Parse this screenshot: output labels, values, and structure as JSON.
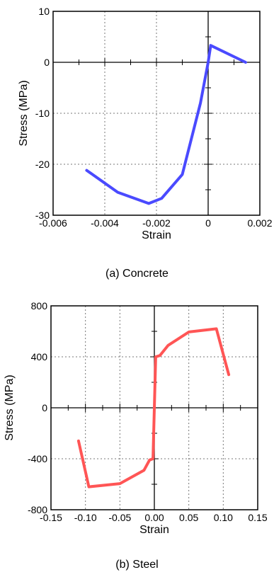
{
  "chart_data": [
    {
      "type": "line",
      "caption": "(a)  Concrete",
      "xlabel": "Strain",
      "ylabel": "Stress (MPa)",
      "xlim": [
        -0.006,
        0.002
      ],
      "ylim": [
        -30,
        10
      ],
      "x_ticks": [
        -0.006,
        -0.004,
        -0.002,
        0,
        0.002
      ],
      "x_tick_labels": [
        "-0.006",
        "-0.004",
        "-0.002",
        "0",
        "0.002"
      ],
      "y_ticks": [
        -30,
        -20,
        -10,
        0,
        10
      ],
      "y_tick_labels": [
        "-30",
        "-20",
        "-10",
        "0",
        "10"
      ],
      "grid": true,
      "series": [
        {
          "color": "#4a4aff",
          "x": [
            -0.0047,
            -0.0035,
            -0.0023,
            -0.0018,
            -0.001,
            -0.0003,
            0.0,
            0.0001,
            0.00145
          ],
          "y": [
            -21.2,
            -25.5,
            -27.7,
            -26.7,
            -22.0,
            -8.0,
            0.0,
            3.3,
            0.0
          ]
        }
      ]
    },
    {
      "type": "line",
      "caption": "(b)  Steel",
      "xlabel": "Strain",
      "ylabel": "Stress (MPa)",
      "xlim": [
        -0.15,
        0.15
      ],
      "ylim": [
        -800,
        800
      ],
      "x_ticks": [
        -0.15,
        -0.1,
        -0.05,
        0,
        0.05,
        0.1,
        0.15
      ],
      "x_tick_labels": [
        "-0.15",
        "-0.10",
        "-0.05",
        "0.00",
        "0.05",
        "0.10",
        "0.15"
      ],
      "y_ticks": [
        -800,
        -400,
        0,
        400,
        800
      ],
      "y_tick_labels": [
        "-800",
        "-400",
        "0",
        "400",
        "800"
      ],
      "grid": true,
      "series": [
        {
          "color": "#ff5555",
          "x": [
            -0.11,
            -0.095,
            -0.05,
            -0.015,
            -0.007,
            -0.002,
            0.0,
            0.002,
            0.008,
            0.02,
            0.05,
            0.09,
            0.108
          ],
          "y": [
            -260,
            -620,
            -595,
            -490,
            -410,
            -400,
            0,
            400,
            410,
            490,
            595,
            620,
            260
          ]
        }
      ]
    }
  ]
}
